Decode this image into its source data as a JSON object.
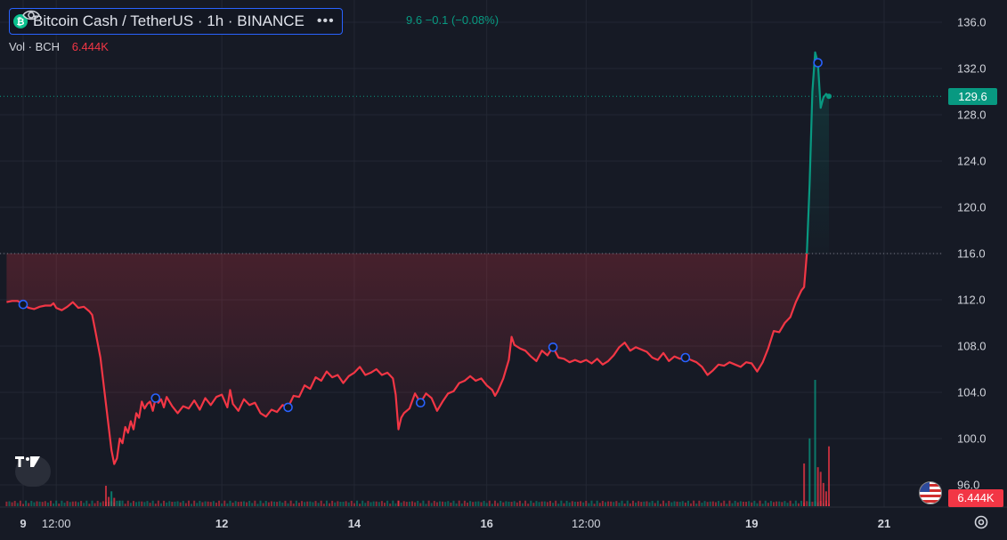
{
  "header": {
    "symbol_title": "Bitcoin Cash / TetherUS · 1h · BINANCE",
    "ohlc_text": "9.6 −0.1 (−0.08%)",
    "volume_label": "Vol · BCH",
    "volume_value": "6.444K"
  },
  "price_axis": {
    "current_price_label": "129.6",
    "current_volume_label": "6.444K"
  },
  "colors": {
    "background": "#161a25",
    "up": "#089981",
    "down": "#f23645",
    "grid": "#232733",
    "marker": "#2962ff"
  },
  "icons": [
    "bch-coin-icon",
    "eye-icon",
    "more-icon",
    "tradingview-logo-icon",
    "us-flag-icon",
    "gear-icon"
  ],
  "chart_data": {
    "type": "line",
    "title": "Bitcoin Cash / TetherUS · 1h · BINANCE",
    "xlabel": "",
    "ylabel": "",
    "ylim": [
      94,
      137
    ],
    "y_ticks": [
      96.0,
      100.0,
      104.0,
      108.0,
      112.0,
      116.0,
      120.0,
      124.0,
      128.0,
      132.0,
      136.0
    ],
    "x_tick_labels": [
      "9",
      "12:00",
      "12",
      "14",
      "16",
      "12:00",
      "19",
      "21"
    ],
    "x_tick_hours": [
      0,
      12,
      72,
      120,
      168,
      204,
      264,
      312
    ],
    "baseline": 116.0,
    "last_price": 129.6,
    "grid": true,
    "series": [
      {
        "name": "BCHUSDT",
        "points": [
          [
            -6,
            111.8
          ],
          [
            -4,
            111.9
          ],
          [
            -2,
            111.9
          ],
          [
            0,
            111.6
          ],
          [
            2,
            111.3
          ],
          [
            4,
            111.2
          ],
          [
            6,
            111.4
          ],
          [
            8,
            111.5
          ],
          [
            10,
            111.5
          ],
          [
            11,
            111.7
          ],
          [
            12,
            111.3
          ],
          [
            14,
            111.1
          ],
          [
            16,
            111.4
          ],
          [
            18,
            111.8
          ],
          [
            20,
            111.3
          ],
          [
            22,
            111.4
          ],
          [
            24,
            111.0
          ],
          [
            25,
            110.7
          ],
          [
            26,
            109.5
          ],
          [
            28,
            107
          ],
          [
            30,
            103
          ],
          [
            32,
            99
          ],
          [
            33,
            97.8
          ],
          [
            34,
            98.3
          ],
          [
            35,
            100
          ],
          [
            36,
            99.6
          ],
          [
            37,
            101
          ],
          [
            38,
            100.5
          ],
          [
            39,
            101.5
          ],
          [
            40,
            100.8
          ],
          [
            41,
            102.2
          ],
          [
            42,
            101.8
          ],
          [
            43,
            103.2
          ],
          [
            44,
            102.6
          ],
          [
            45,
            103
          ],
          [
            46,
            103.2
          ],
          [
            47,
            102.4
          ],
          [
            48,
            103.5
          ],
          [
            49,
            103.1
          ],
          [
            50,
            103.4
          ],
          [
            51,
            102.7
          ],
          [
            52,
            103.6
          ],
          [
            54,
            102.8
          ],
          [
            56,
            102.2
          ],
          [
            58,
            102.8
          ],
          [
            60,
            102.6
          ],
          [
            62,
            103.3
          ],
          [
            64,
            102.5
          ],
          [
            66,
            103.5
          ],
          [
            68,
            102.9
          ],
          [
            70,
            103.6
          ],
          [
            72,
            103.8
          ],
          [
            74,
            102.7
          ],
          [
            75,
            104.2
          ],
          [
            76,
            103.0
          ],
          [
            78,
            102.4
          ],
          [
            80,
            103.4
          ],
          [
            82,
            102.9
          ],
          [
            84,
            103.1
          ],
          [
            86,
            102.2
          ],
          [
            88,
            101.9
          ],
          [
            90,
            102.5
          ],
          [
            92,
            102.3
          ],
          [
            94,
            102.9
          ],
          [
            96,
            102.7
          ],
          [
            98,
            103.7
          ],
          [
            100,
            103.6
          ],
          [
            102,
            104.6
          ],
          [
            104,
            104.3
          ],
          [
            106,
            105.3
          ],
          [
            108,
            105.0
          ],
          [
            110,
            105.8
          ],
          [
            112,
            105.3
          ],
          [
            114,
            105.5
          ],
          [
            116,
            104.8
          ],
          [
            118,
            105.4
          ],
          [
            120,
            105.7
          ],
          [
            122,
            106.2
          ],
          [
            124,
            105.5
          ],
          [
            126,
            105.7
          ],
          [
            128,
            106.0
          ],
          [
            130,
            105.5
          ],
          [
            132,
            105.7
          ],
          [
            134,
            105.2
          ],
          [
            135,
            103.8
          ],
          [
            136,
            100.8
          ],
          [
            137,
            101.8
          ],
          [
            138,
            102.2
          ],
          [
            140,
            102.6
          ],
          [
            142,
            103.9
          ],
          [
            144,
            103.1
          ],
          [
            146,
            103.9
          ],
          [
            148,
            103.5
          ],
          [
            150,
            102.4
          ],
          [
            152,
            103.2
          ],
          [
            154,
            103.9
          ],
          [
            156,
            104.1
          ],
          [
            158,
            104.8
          ],
          [
            160,
            105.0
          ],
          [
            162,
            105.4
          ],
          [
            164,
            105.0
          ],
          [
            166,
            105.2
          ],
          [
            168,
            104.6
          ],
          [
            170,
            104.2
          ],
          [
            171,
            103.7
          ],
          [
            172,
            104.1
          ],
          [
            174,
            105.2
          ],
          [
            176,
            106.8
          ],
          [
            177,
            108.8
          ],
          [
            178,
            108.1
          ],
          [
            180,
            107.8
          ],
          [
            182,
            107.6
          ],
          [
            184,
            107.1
          ],
          [
            186,
            106.7
          ],
          [
            188,
            107.6
          ],
          [
            190,
            107.2
          ],
          [
            192,
            107.9
          ],
          [
            194,
            107.0
          ],
          [
            196,
            106.9
          ],
          [
            198,
            106.6
          ],
          [
            200,
            106.8
          ],
          [
            202,
            106.6
          ],
          [
            204,
            106.8
          ],
          [
            206,
            106.5
          ],
          [
            208,
            106.9
          ],
          [
            210,
            106.4
          ],
          [
            212,
            106.7
          ],
          [
            214,
            107.2
          ],
          [
            216,
            107.9
          ],
          [
            218,
            108.3
          ],
          [
            220,
            107.6
          ],
          [
            222,
            107.9
          ],
          [
            224,
            107.7
          ],
          [
            226,
            107.5
          ],
          [
            228,
            107.0
          ],
          [
            230,
            106.8
          ],
          [
            232,
            107.4
          ],
          [
            234,
            106.7
          ],
          [
            236,
            107.1
          ],
          [
            238,
            106.9
          ],
          [
            240,
            107.0
          ],
          [
            242,
            106.8
          ],
          [
            244,
            106.6
          ],
          [
            246,
            106.2
          ],
          [
            248,
            105.5
          ],
          [
            250,
            105.9
          ],
          [
            252,
            106.4
          ],
          [
            254,
            106.3
          ],
          [
            256,
            106.6
          ],
          [
            258,
            106.4
          ],
          [
            260,
            106.2
          ],
          [
            262,
            106.6
          ],
          [
            264,
            106.5
          ],
          [
            266,
            105.8
          ],
          [
            268,
            106.6
          ],
          [
            270,
            107.8
          ],
          [
            272,
            109.3
          ],
          [
            274,
            109.2
          ],
          [
            276,
            110.0
          ],
          [
            278,
            110.5
          ],
          [
            280,
            111.8
          ],
          [
            282,
            112.8
          ],
          [
            283,
            113.1
          ],
          [
            284,
            116.0
          ],
          [
            285,
            122
          ],
          [
            286,
            130
          ],
          [
            287,
            133.4
          ],
          [
            288,
            132.5
          ],
          [
            289,
            128.6
          ],
          [
            290,
            129.5
          ],
          [
            291,
            129.8
          ],
          [
            292,
            129.6
          ]
        ]
      }
    ],
    "markers_at_hours": [
      0,
      48,
      96,
      144,
      192,
      240,
      288
    ],
    "volume": {
      "unit": "BCH",
      "last": 6.444,
      "bars": [
        {
          "x": 30,
          "v": 2.2,
          "color": "down"
        },
        {
          "x": 31,
          "v": 1.0,
          "color": "down"
        },
        {
          "x": 32,
          "v": 1.6,
          "color": "up"
        },
        {
          "x": 33,
          "v": 0.9,
          "color": "down"
        },
        {
          "x": 35,
          "v": 0.6,
          "color": "up"
        },
        {
          "x": 136,
          "v": 0.6,
          "color": "down"
        },
        {
          "x": 283,
          "v": 4.6,
          "color": "down"
        },
        {
          "x": 285,
          "v": 7.3,
          "color": "up"
        },
        {
          "x": 287,
          "v": 13.6,
          "color": "up"
        },
        {
          "x": 288,
          "v": 4.2,
          "color": "down"
        },
        {
          "x": 289,
          "v": 3.7,
          "color": "down"
        },
        {
          "x": 290,
          "v": 2.5,
          "color": "down"
        },
        {
          "x": 291,
          "v": 1.6,
          "color": "down"
        },
        {
          "x": 292,
          "v": 6.444,
          "color": "down"
        }
      ]
    }
  }
}
